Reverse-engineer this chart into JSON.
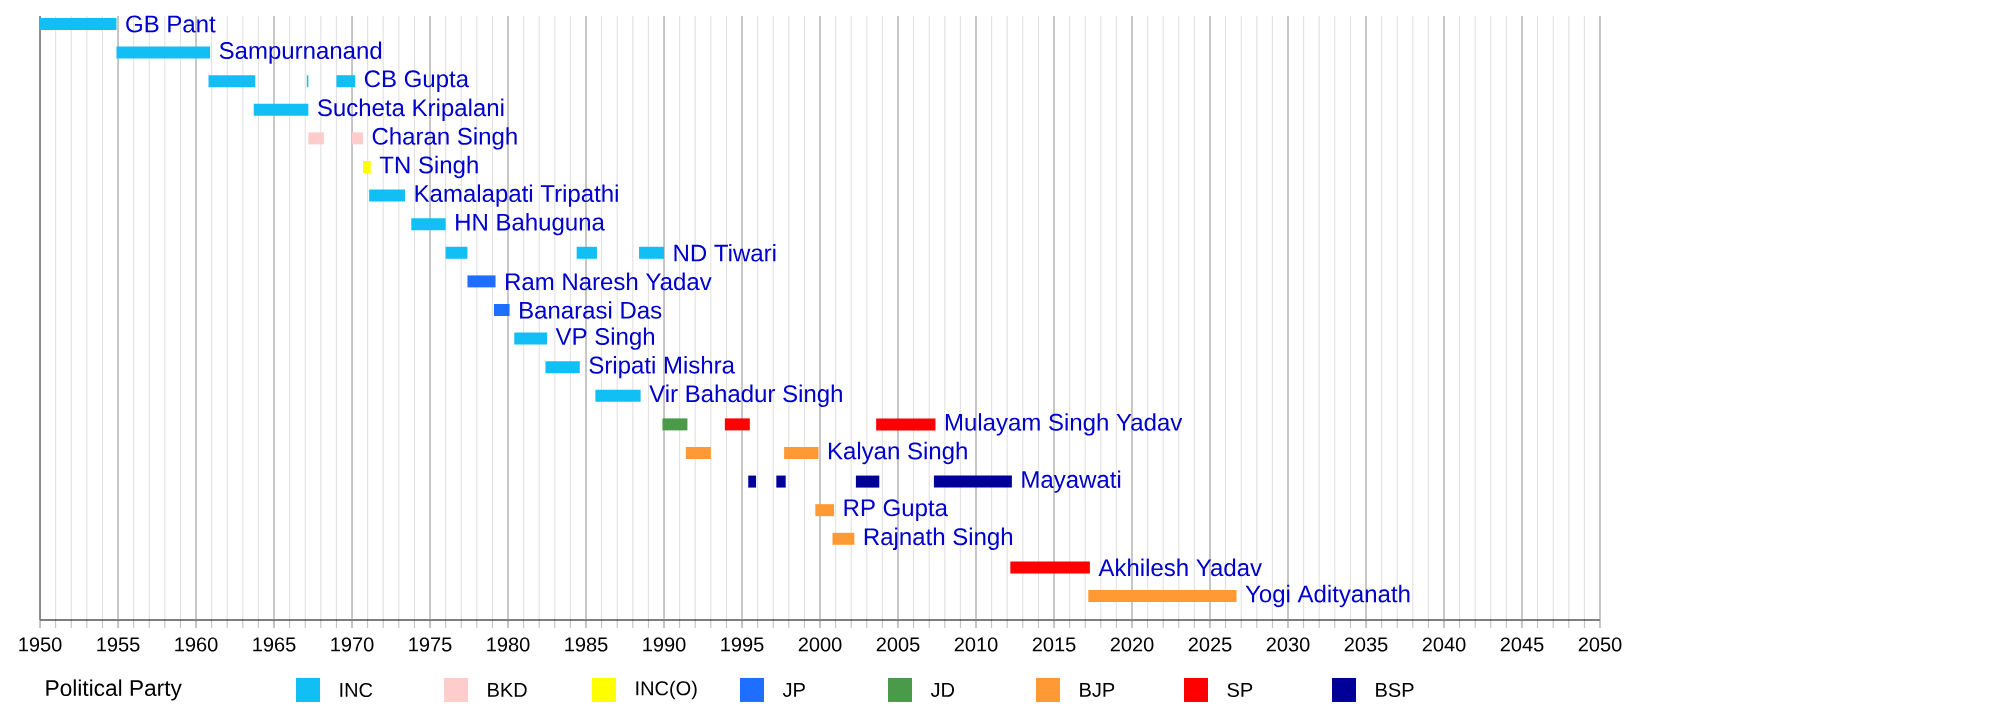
{
  "chart_data": {
    "type": "bar",
    "orientation": "horizontal",
    "legend_title": "Political Party",
    "legend": "bottom",
    "grid": "x",
    "categories": [
      "GB Pant",
      "Sampurnanand",
      "CB Gupta",
      "Sucheta Kripalani",
      "Charan Singh",
      "TN Singh",
      "Kamalapati Tripathi",
      "HN Bahuguna",
      "ND Tiwari",
      "Ram Naresh Yadav",
      "Banarasi Das",
      "VP Singh",
      "Sripati Mishra",
      "Vir Bahadur Singh",
      "Mulayam Singh Yadav",
      "Kalyan Singh",
      "Mayawati",
      "RP Gupta",
      "Rajnath Singh",
      "Akhilesh Yadav",
      "Yogi Adityanath"
    ],
    "xlim": [
      1950,
      2050
    ],
    "xticks": [
      1950,
      {
        "value": 1951,
        "label": null
      },
      {
        "value": 1952,
        "label": null
      },
      {
        "value": 1953,
        "label": null
      },
      {
        "value": 1954,
        "label": null
      },
      1955,
      {
        "value": 1956,
        "label": null
      },
      {
        "value": 1957,
        "label": null
      },
      {
        "value": 1958,
        "label": null
      },
      {
        "value": 1959,
        "label": null
      },
      1960,
      {
        "value": 1961,
        "label": null
      },
      {
        "value": 1962,
        "label": null
      },
      {
        "value": 1963,
        "label": null
      },
      {
        "value": 1964,
        "label": null
      },
      1965,
      {
        "value": 1966,
        "label": null
      },
      {
        "value": 1967,
        "label": null
      },
      {
        "value": 1968,
        "label": null
      },
      {
        "value": 1969,
        "label": null
      },
      1970,
      {
        "value": 1971,
        "label": null
      },
      {
        "value": 1972,
        "label": null
      },
      {
        "value": 1973,
        "label": null
      },
      {
        "value": 1974,
        "label": null
      },
      1975,
      {
        "value": 1976,
        "label": null
      },
      {
        "value": 1977,
        "label": null
      },
      {
        "value": 1978,
        "label": null
      },
      {
        "value": 1979,
        "label": null
      },
      1980,
      {
        "value": 1981,
        "label": null
      },
      {
        "value": 1982,
        "label": null
      },
      {
        "value": 1983,
        "label": null
      },
      {
        "value": 1984,
        "label": null
      },
      1985,
      {
        "value": 1986,
        "label": null
      },
      {
        "value": 1987,
        "label": null
      },
      {
        "value": 1988,
        "label": null
      },
      {
        "value": 1989,
        "label": null
      },
      1990,
      {
        "value": 1991,
        "label": null
      },
      {
        "value": 1992,
        "label": null
      },
      {
        "value": 1993,
        "label": null
      },
      {
        "value": 1994,
        "label": null
      },
      1995,
      {
        "value": 1996,
        "label": null
      },
      {
        "value": 1997,
        "label": null
      },
      {
        "value": 1998,
        "label": null
      },
      {
        "value": 1999,
        "label": null
      },
      2000,
      {
        "value": 2001,
        "label": null
      },
      {
        "value": 2002,
        "label": null
      },
      {
        "value": 2003,
        "label": null
      },
      {
        "value": 2004,
        "label": null
      },
      2005,
      {
        "value": 2006,
        "label": null
      },
      {
        "value": 2007,
        "label": null
      },
      {
        "value": 2008,
        "label": null
      },
      {
        "value": 2009,
        "label": null
      },
      2010,
      {
        "value": 2011,
        "label": null
      },
      {
        "value": 2012,
        "label": null
      },
      {
        "value": 2013,
        "label": null
      },
      {
        "value": 2014,
        "label": null
      },
      2015,
      {
        "value": 2016,
        "label": null
      },
      {
        "value": 2017,
        "label": null
      },
      {
        "value": 2018,
        "label": null
      },
      {
        "value": 2019,
        "label": null
      },
      2020,
      {
        "value": 2021,
        "label": null
      },
      {
        "value": 2022,
        "label": null
      },
      {
        "value": 2023,
        "label": null
      },
      {
        "value": 2024,
        "label": null
      },
      2025,
      {
        "value": 2026,
        "label": null
      },
      {
        "value": 2027,
        "label": null
      },
      {
        "value": 2028,
        "label": null
      },
      {
        "value": 2029,
        "label": null
      },
      2030,
      {
        "value": 2031,
        "label": null
      },
      {
        "value": 2032,
        "label": null
      },
      {
        "value": 2033,
        "label": null
      },
      {
        "value": 2034,
        "label": null
      },
      2035,
      {
        "value": 2036,
        "label": null
      },
      {
        "value": 2037,
        "label": null
      },
      {
        "value": 2038,
        "label": null
      },
      {
        "value": 2039,
        "label": null
      },
      2040,
      {
        "value": 2041,
        "label": null
      },
      {
        "value": 2042,
        "label": null
      },
      {
        "value": 2043,
        "label": null
      },
      {
        "value": 2044,
        "label": null
      },
      2045,
      {
        "value": 2046,
        "label": null
      },
      {
        "value": 2047,
        "label": null
      },
      {
        "value": 2048,
        "label": null
      },
      {
        "value": 2049,
        "label": null
      },
      2050
    ],
    "series": [
      {
        "name": "INC",
        "color": "#11bff5",
        "base": [
          1950,
          1954.9,
          1960.8,
          1963.7,
          null,
          null,
          1971.1,
          1973.8,
          1976.0,
          null,
          null,
          1980.4,
          1982.4,
          1985.6,
          null,
          null,
          null,
          null,
          null,
          null,
          null
        ],
        "values": [
          4.9,
          6.0,
          3.0,
          3.5,
          null,
          null,
          2.3,
          2.2,
          1.4,
          null,
          null,
          2.1,
          2.2,
          2.9,
          null,
          null,
          null,
          null,
          null,
          null,
          null
        ]
      },
      {
        "color": "#11bff5",
        "base": [
          null,
          null,
          1967.1,
          null,
          null,
          null,
          null,
          null,
          1984.4,
          null,
          null,
          null,
          null,
          null,
          null,
          null,
          null,
          null,
          null,
          null,
          null
        ],
        "values": [
          null,
          null,
          0.1,
          null,
          null,
          null,
          null,
          null,
          1.3,
          null,
          null,
          null,
          null,
          null,
          null,
          null,
          null,
          null,
          null,
          null,
          null
        ]
      },
      {
        "color": "#11bff5",
        "base": [
          null,
          null,
          1969.0,
          null,
          null,
          null,
          null,
          null,
          1988.4,
          null,
          null,
          null,
          null,
          null,
          null,
          null,
          null,
          null,
          null,
          null,
          null
        ],
        "values": [
          null,
          null,
          1.2,
          null,
          null,
          null,
          null,
          null,
          1.6,
          null,
          null,
          null,
          null,
          null,
          null,
          null,
          null,
          null,
          null,
          null,
          null
        ]
      },
      {
        "name": "BKD",
        "color": "#ffcccc",
        "base": [
          null,
          null,
          null,
          null,
          1967.2,
          null,
          null,
          null,
          null,
          null,
          null,
          null,
          null,
          null,
          null,
          null,
          null,
          null,
          null,
          null,
          null
        ],
        "values": [
          null,
          null,
          null,
          null,
          1.0,
          null,
          null,
          null,
          null,
          null,
          null,
          null,
          null,
          null,
          null,
          null,
          null,
          null,
          null,
          null,
          null
        ]
      },
      {
        "color": "#ffcccc",
        "base": [
          null,
          null,
          null,
          null,
          1970.0,
          null,
          null,
          null,
          null,
          null,
          null,
          null,
          null,
          null,
          null,
          null,
          null,
          null,
          null,
          null,
          null
        ],
        "values": [
          null,
          null,
          null,
          null,
          0.7,
          null,
          null,
          null,
          null,
          null,
          null,
          null,
          null,
          null,
          null,
          null,
          null,
          null,
          null,
          null,
          null
        ]
      },
      {
        "name": "INC(O)",
        "color": "#ffff00",
        "base": [
          null,
          null,
          null,
          null,
          null,
          1970.7,
          null,
          null,
          null,
          null,
          null,
          null,
          null,
          null,
          null,
          null,
          null,
          null,
          null,
          null,
          null
        ],
        "values": [
          null,
          null,
          null,
          null,
          null,
          0.5,
          null,
          null,
          null,
          null,
          null,
          null,
          null,
          null,
          null,
          null,
          null,
          null,
          null,
          null,
          null
        ]
      },
      {
        "name": "JP",
        "color": "#1e6fff",
        "base": [
          null,
          null,
          null,
          null,
          null,
          null,
          null,
          null,
          null,
          1977.4,
          1979.1,
          null,
          null,
          null,
          null,
          null,
          null,
          null,
          null,
          null,
          null
        ],
        "values": [
          null,
          null,
          null,
          null,
          null,
          null,
          null,
          null,
          null,
          1.8,
          1.0,
          null,
          null,
          null,
          null,
          null,
          null,
          null,
          null,
          null,
          null
        ]
      },
      {
        "name": "JD",
        "color": "#4a9a4a",
        "base": [
          null,
          null,
          null,
          null,
          null,
          null,
          null,
          null,
          null,
          null,
          null,
          null,
          null,
          null,
          1989.9,
          null,
          null,
          null,
          null,
          null,
          null
        ],
        "values": [
          null,
          null,
          null,
          null,
          null,
          null,
          null,
          null,
          null,
          null,
          null,
          null,
          null,
          null,
          1.6,
          null,
          null,
          null,
          null,
          null,
          null
        ]
      },
      {
        "name": "BJP",
        "color": "#ff9933",
        "base": [
          null,
          null,
          null,
          null,
          null,
          null,
          null,
          null,
          null,
          null,
          null,
          null,
          null,
          null,
          null,
          1991.4,
          null,
          1999.7,
          2000.8,
          null,
          2017.2
        ],
        "values": [
          null,
          null,
          null,
          null,
          null,
          null,
          null,
          null,
          null,
          null,
          null,
          null,
          null,
          null,
          null,
          1.6,
          null,
          1.2,
          1.4,
          null,
          9.5
        ]
      },
      {
        "color": "#ff9933",
        "base": [
          null,
          null,
          null,
          null,
          null,
          null,
          null,
          null,
          null,
          null,
          null,
          null,
          null,
          null,
          null,
          1997.7,
          null,
          null,
          null,
          null,
          null
        ],
        "values": [
          null,
          null,
          null,
          null,
          null,
          null,
          null,
          null,
          null,
          null,
          null,
          null,
          null,
          null,
          null,
          2.2,
          null,
          null,
          null,
          null,
          null
        ]
      },
      {
        "name": "SP",
        "color": "#ff0000",
        "base": [
          null,
          null,
          null,
          null,
          null,
          null,
          null,
          null,
          null,
          null,
          null,
          null,
          null,
          null,
          1993.9,
          null,
          null,
          null,
          null,
          2012.2,
          null
        ],
        "values": [
          null,
          null,
          null,
          null,
          null,
          null,
          null,
          null,
          null,
          null,
          null,
          null,
          null,
          null,
          1.6,
          null,
          null,
          null,
          null,
          5.1,
          null
        ]
      },
      {
        "color": "#ff0000",
        "base": [
          null,
          null,
          null,
          null,
          null,
          null,
          null,
          null,
          null,
          null,
          null,
          null,
          null,
          null,
          2003.6,
          null,
          null,
          null,
          null,
          null,
          null
        ],
        "values": [
          null,
          null,
          null,
          null,
          null,
          null,
          null,
          null,
          null,
          null,
          null,
          null,
          null,
          null,
          3.8,
          null,
          null,
          null,
          null,
          null,
          null
        ]
      },
      {
        "name": "BSP",
        "color": "#000099",
        "base": [
          null,
          null,
          null,
          null,
          null,
          null,
          null,
          null,
          null,
          null,
          null,
          null,
          null,
          null,
          null,
          null,
          1995.4,
          null,
          null,
          null,
          null
        ],
        "values": [
          null,
          null,
          null,
          null,
          null,
          null,
          null,
          null,
          null,
          null,
          null,
          null,
          null,
          null,
          null,
          null,
          0.5,
          null,
          null,
          null,
          null
        ]
      },
      {
        "color": "#000099",
        "base": [
          null,
          null,
          null,
          null,
          null,
          null,
          null,
          null,
          null,
          null,
          null,
          null,
          null,
          null,
          null,
          null,
          1997.2,
          null,
          null,
          null,
          null
        ],
        "values": [
          null,
          null,
          null,
          null,
          null,
          null,
          null,
          null,
          null,
          null,
          null,
          null,
          null,
          null,
          null,
          null,
          0.6,
          null,
          null,
          null,
          null
        ]
      },
      {
        "color": "#000099",
        "base": [
          null,
          null,
          null,
          null,
          null,
          null,
          null,
          null,
          null,
          null,
          null,
          null,
          null,
          null,
          null,
          null,
          2002.3,
          null,
          null,
          null,
          null
        ],
        "values": [
          null,
          null,
          null,
          null,
          null,
          null,
          null,
          null,
          null,
          null,
          null,
          null,
          null,
          null,
          null,
          null,
          1.5,
          null,
          null,
          null,
          null
        ]
      },
      {
        "color": "#000099",
        "base": [
          null,
          null,
          null,
          null,
          null,
          null,
          null,
          null,
          null,
          null,
          null,
          null,
          null,
          null,
          null,
          null,
          2007.3,
          null,
          null,
          null,
          null
        ],
        "values": [
          null,
          null,
          null,
          null,
          null,
          null,
          null,
          null,
          null,
          null,
          null,
          null,
          null,
          null,
          null,
          null,
          5.0,
          null,
          null,
          null,
          null
        ]
      }
    ]
  }
}
